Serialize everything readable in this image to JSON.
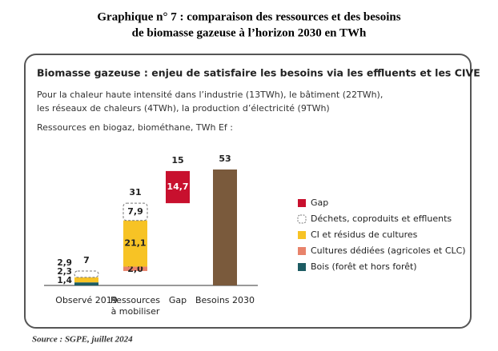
{
  "chart_data": {
    "type": "waterfall",
    "title": [
      "Graphique n° 7 : comparaison des ressources et des besoins",
      "de biomasse gazeuse à l’horizon 2030 en TWh"
    ],
    "box_title": "Biomasse gazeuse : enjeu de satisfaire les besoins via les effluents et les CIVE",
    "description": [
      "Pour la chaleur haute intensité dans l’industrie (13TWh), le bâtiment (22TWh),",
      "les réseaux de chaleurs (4TWh), la production d’électricité (9TWh)"
    ],
    "unit_note": "Ressources en biogaz, biométhane, TWh Ef :",
    "categories": [
      "Observé 2019",
      "Ressources à mobiliser",
      "Gap",
      "Besoins 2030"
    ],
    "measure": [
      "relative",
      "relative",
      "relative",
      "total"
    ],
    "totals": [
      7,
      31,
      15,
      53
    ],
    "total_color": "#7a5a3c",
    "series": [
      {
        "name": "Bois (forêt et hors forêt)",
        "color": "#1d5c63",
        "values": [
          1.4,
          null,
          null,
          null
        ],
        "value_labels": [
          "1,4",
          null,
          null,
          null
        ]
      },
      {
        "name": "Cultures dédiées (agricoles et CLC)",
        "color": "#e8836b",
        "values": [
          null,
          2.0,
          null,
          null
        ],
        "value_labels": [
          null,
          "2,0",
          null,
          null
        ]
      },
      {
        "name": "CI et résidus de cultures",
        "color": "#f7c325",
        "values": [
          2.3,
          21.1,
          null,
          null
        ],
        "value_labels": [
          "2,3",
          "21,1",
          null,
          null
        ]
      },
      {
        "name": "Déchets, coproduits et effluents",
        "color": "#ffffff",
        "dashed": true,
        "values": [
          2.9,
          7.9,
          null,
          null
        ],
        "value_labels": [
          "2,9",
          "7,9",
          null,
          null
        ]
      },
      {
        "name": "Gap",
        "color": "#c8102e",
        "values": [
          null,
          null,
          14.7,
          null
        ],
        "value_labels": [
          null,
          null,
          "14,7",
          null
        ]
      }
    ],
    "source": "Source : SGPE, juillet 2024"
  }
}
